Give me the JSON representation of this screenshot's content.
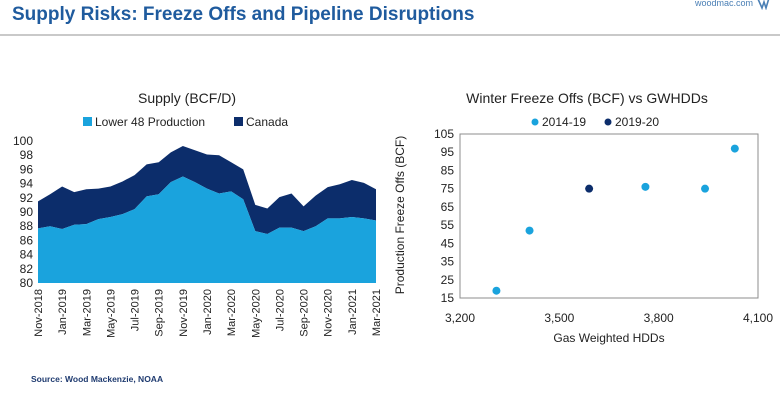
{
  "header": {
    "title": "Supply Risks: Freeze Offs and Pipeline Disruptions",
    "brand": "woodmac.com"
  },
  "source": "Source: Wood Mackenzie, NOAA",
  "chart_data": [
    {
      "type": "area",
      "title": "Supply (BCF/D)",
      "stacked": true,
      "legend": "top",
      "ylim": [
        80,
        100
      ],
      "yticks": [
        80,
        82,
        84,
        86,
        88,
        90,
        92,
        94,
        96,
        98,
        100
      ],
      "x": [
        "Nov-2018",
        "Dec-2018",
        "Jan-2019",
        "Feb-2019",
        "Mar-2019",
        "Apr-2019",
        "May-2019",
        "Jun-2019",
        "Jul-2019",
        "Aug-2019",
        "Sep-2019",
        "Oct-2019",
        "Nov-2019",
        "Dec-2019",
        "Jan-2020",
        "Feb-2020",
        "Mar-2020",
        "Apr-2020",
        "May-2020",
        "Jun-2020",
        "Jul-2020",
        "Aug-2020",
        "Sep-2020",
        "Oct-2020",
        "Nov-2020",
        "Dec-2020",
        "Jan-2021",
        "Feb-2021",
        "Mar-2021"
      ],
      "x_tick_labels": [
        "Nov-2018",
        "Jan-2019",
        "Mar-2019",
        "May-2019",
        "Jul-2019",
        "Sep-2019",
        "Nov-2019",
        "Jan-2020",
        "Mar-2020",
        "May-2020",
        "Jul-2020",
        "Sep-2020",
        "Nov-2020",
        "Jan-2021",
        "Mar-2021"
      ],
      "series": [
        {
          "name": "Lower 48 Production",
          "color": "#1aa3dd",
          "values": [
            87.7,
            88.0,
            87.6,
            88.2,
            88.3,
            89.0,
            89.3,
            89.7,
            90.4,
            92.2,
            92.5,
            94.2,
            95.0,
            94.2,
            93.3,
            92.6,
            92.9,
            91.8,
            87.3,
            86.9,
            87.8,
            87.8,
            87.3,
            88.0,
            89.1,
            89.1,
            89.3,
            89.1,
            88.8
          ]
        },
        {
          "name": "Canada",
          "color": "#0c2d6b",
          "totals": [
            91.5,
            92.5,
            93.6,
            92.8,
            93.2,
            93.3,
            93.6,
            94.3,
            95.2,
            96.7,
            97.0,
            98.4,
            99.3,
            98.7,
            98.1,
            98.0,
            97.0,
            96.0,
            91.0,
            90.5,
            92.1,
            92.6,
            90.8,
            92.3,
            93.5,
            93.9,
            94.5,
            94.1,
            93.2
          ]
        }
      ]
    },
    {
      "type": "scatter",
      "title": "Winter Freeze Offs (BCF) vs GWHDDs",
      "xlabel": "Gas Weighted HDDs",
      "ylabel": "Production Freeze Offs (BCF)",
      "xlim": [
        3200,
        4100
      ],
      "ylim": [
        15,
        105
      ],
      "xticks": [
        3200,
        3500,
        3800,
        4100
      ],
      "xtick_labels": [
        "3,200",
        "3,500",
        "3,800",
        "4,100"
      ],
      "yticks": [
        15,
        25,
        35,
        45,
        55,
        65,
        75,
        85,
        95,
        105
      ],
      "legend": "top",
      "series": [
        {
          "name": "2014-19",
          "color": "#1aa3dd",
          "points": [
            [
              3310,
              19
            ],
            [
              3410,
              52
            ],
            [
              3760,
              76
            ],
            [
              3940,
              75
            ],
            [
              4030,
              97
            ]
          ]
        },
        {
          "name": "2019-20",
          "color": "#0c2d6b",
          "points": [
            [
              3590,
              75
            ]
          ]
        }
      ]
    }
  ]
}
